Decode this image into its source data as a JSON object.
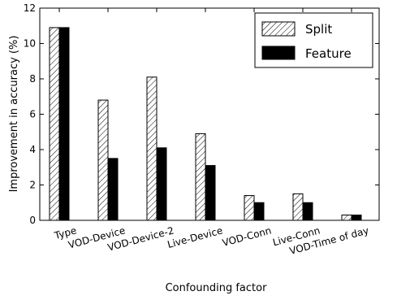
{
  "chart_data": {
    "type": "bar",
    "categories": [
      "Type",
      "VOD-Device",
      "VOD-Device-2",
      "Live-Device",
      "VOD-Conn",
      "Live-Conn",
      "VOD-Time of day"
    ],
    "series": [
      {
        "name": "Split",
        "values": [
          10.9,
          6.8,
          8.1,
          4.9,
          1.4,
          1.5,
          0.3
        ],
        "pattern": "diagonal-hatch"
      },
      {
        "name": "Feature",
        "values": [
          10.9,
          3.5,
          4.1,
          3.1,
          1.0,
          1.0,
          0.3
        ],
        "color": "#000000"
      }
    ],
    "title": "",
    "xlabel": "Confounding factor",
    "ylabel": "Improvement in accuracy (%)",
    "ylim": [
      0,
      12
    ],
    "yticks": [
      0,
      2,
      4,
      6,
      8,
      10,
      12
    ],
    "grid": false,
    "legend": "top-right"
  }
}
